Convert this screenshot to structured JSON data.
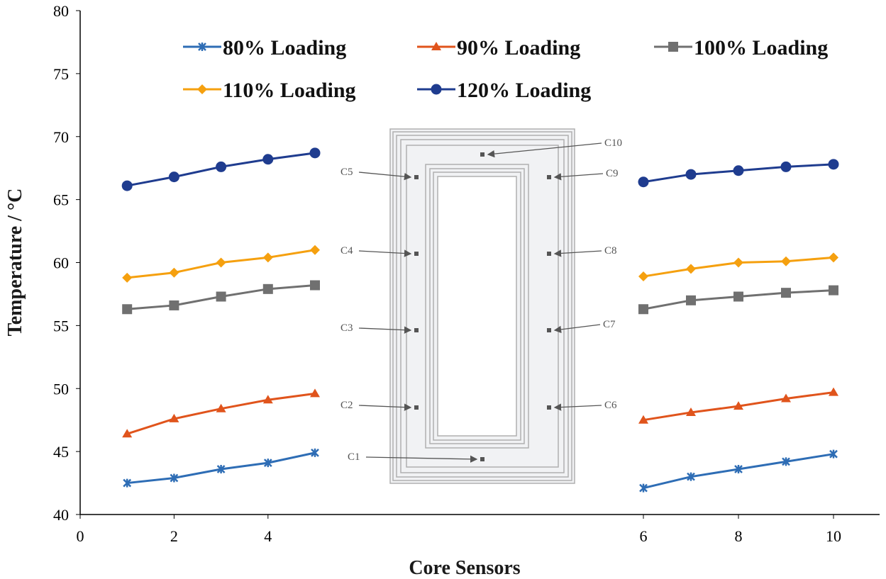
{
  "chart_data": {
    "type": "line",
    "title": "",
    "xlabel": "Core Sensors",
    "ylabel": "Temperature / °C",
    "ylim": [
      40,
      80
    ],
    "yticks": [
      40,
      45,
      50,
      55,
      60,
      65,
      70,
      75,
      80
    ],
    "xticks": [
      0,
      2,
      4,
      6,
      8,
      10
    ],
    "x_axis_note": "broken axis between sensor 5 and 6",
    "grid": false,
    "legend_position": "top",
    "x": [
      1,
      2,
      3,
      4,
      5,
      6,
      7,
      8,
      9,
      10
    ],
    "series": [
      {
        "name": "80% Loading",
        "color": "#2e6db5",
        "marker": "x",
        "values": [
          42.5,
          42.9,
          43.6,
          44.1,
          44.9,
          42.1,
          43.0,
          43.6,
          44.2,
          44.8
        ]
      },
      {
        "name": "90% Loading",
        "color": "#e0541c",
        "marker": "triangle",
        "values": [
          46.4,
          47.6,
          48.4,
          49.1,
          49.6,
          47.5,
          48.1,
          48.6,
          49.2,
          49.7
        ]
      },
      {
        "name": "100% Loading",
        "color": "#707070",
        "marker": "square",
        "values": [
          56.3,
          56.6,
          57.3,
          57.9,
          58.2,
          56.3,
          57.0,
          57.3,
          57.6,
          57.8
        ]
      },
      {
        "name": "110% Loading",
        "color": "#f5a00f",
        "marker": "diamond",
        "values": [
          58.8,
          59.2,
          60.0,
          60.4,
          61.0,
          58.9,
          59.5,
          60.0,
          60.1,
          60.4
        ]
      },
      {
        "name": "120% Loading",
        "color": "#1f3c8f",
        "marker": "circle",
        "values": [
          66.1,
          66.8,
          67.6,
          68.2,
          68.7,
          66.4,
          67.0,
          67.3,
          67.6,
          67.8
        ]
      }
    ],
    "inset_diagram": {
      "description_labels": [
        "C1",
        "C2",
        "C3",
        "C4",
        "C5",
        "C6",
        "C7",
        "C8",
        "C9",
        "C10"
      ]
    }
  }
}
